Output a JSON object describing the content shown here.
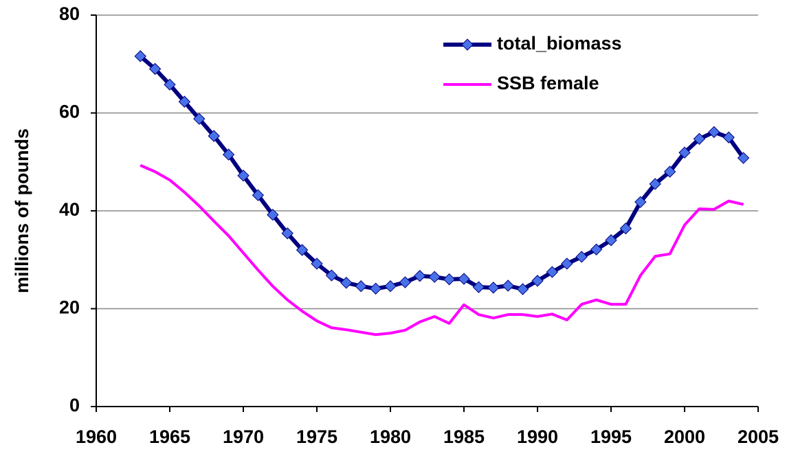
{
  "chart_data": {
    "type": "line",
    "y_label": "millions of pounds",
    "x": [
      1963,
      1964,
      1965,
      1966,
      1967,
      1968,
      1969,
      1970,
      1971,
      1972,
      1973,
      1974,
      1975,
      1976,
      1977,
      1978,
      1979,
      1980,
      1981,
      1982,
      1983,
      1984,
      1985,
      1986,
      1987,
      1988,
      1989,
      1990,
      1991,
      1992,
      1993,
      1994,
      1995,
      1996,
      1997,
      1998,
      1999,
      2000,
      2001,
      2002,
      2003,
      2004
    ],
    "series": [
      {
        "name": "total_biomass",
        "color": "#000080",
        "marker": "diamond",
        "marker_color": "#4a72e8",
        "values": [
          71.6,
          69,
          65.8,
          62.3,
          58.8,
          55.3,
          51.5,
          47.2,
          43.2,
          39.2,
          35.4,
          32,
          29.2,
          26.8,
          25.3,
          24.6,
          24.1,
          24.6,
          25.4,
          26.7,
          26.5,
          26,
          26.1,
          24.4,
          24.3,
          24.7,
          24,
          25.7,
          27.5,
          29.2,
          30.6,
          32.1,
          34,
          36.4,
          41.8,
          45.5,
          48,
          51.9,
          54.7,
          56.1,
          55,
          50.8
        ]
      },
      {
        "name": "SSB female",
        "color": "#ff00ff",
        "values": [
          49.3,
          48,
          46.3,
          43.8,
          41,
          37.9,
          34.9,
          31.4,
          27.9,
          24.6,
          21.8,
          19.5,
          17.5,
          16.1,
          15.7,
          15.2,
          14.7,
          15,
          15.6,
          17.3,
          18.4,
          17,
          20.8,
          18.8,
          18.1,
          18.8,
          18.8,
          18.4,
          18.9,
          17.7,
          20.9,
          21.8,
          20.9,
          20.9,
          26.8,
          30.7,
          31.2,
          37.1,
          40.4,
          40.3,
          42,
          41.3
        ]
      }
    ],
    "xlim": [
      1960,
      2005
    ],
    "xticks": [
      1960,
      1965,
      1970,
      1975,
      1980,
      1985,
      1990,
      1995,
      2000,
      2005
    ],
    "ylim": [
      0,
      80
    ],
    "yticks": [
      0,
      20,
      40,
      60,
      80
    ],
    "grid": true,
    "legend": "top"
  }
}
